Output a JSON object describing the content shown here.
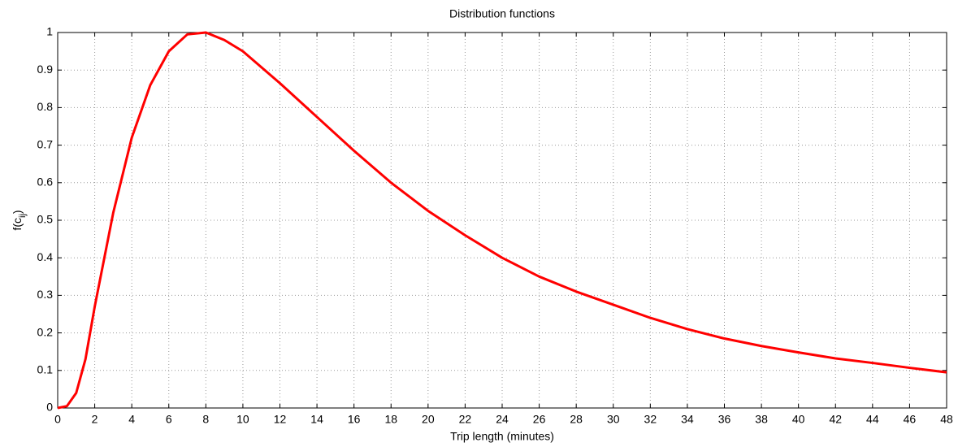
{
  "chart_data": {
    "type": "line",
    "title": "Distribution functions",
    "x_label": "Trip length (minutes)",
    "y_label_parts": [
      "f(c",
      "ij",
      ")"
    ],
    "x": [
      0,
      0.5,
      1,
      1.5,
      2,
      3,
      4,
      5,
      6,
      7,
      8,
      9,
      10,
      12,
      14,
      16,
      18,
      20,
      22,
      24,
      26,
      28,
      30,
      32,
      34,
      36,
      38,
      40,
      42,
      44,
      46,
      48
    ],
    "series": [
      {
        "name": "f(cij)",
        "color": "#ff0000",
        "values": [
          0,
          0.005,
          0.04,
          0.13,
          0.27,
          0.52,
          0.72,
          0.86,
          0.95,
          0.995,
          1.0,
          0.98,
          0.95,
          0.865,
          0.775,
          0.685,
          0.6,
          0.525,
          0.46,
          0.4,
          0.35,
          0.31,
          0.275,
          0.24,
          0.21,
          0.185,
          0.165,
          0.148,
          0.132,
          0.12,
          0.107,
          0.095
        ]
      }
    ],
    "xlim": [
      0,
      48
    ],
    "xticks": [
      0,
      2,
      4,
      6,
      8,
      10,
      12,
      14,
      16,
      18,
      20,
      22,
      24,
      26,
      28,
      30,
      32,
      34,
      36,
      38,
      40,
      42,
      44,
      46,
      48
    ],
    "ylim": [
      0,
      1
    ],
    "yticks": [
      0,
      0.1,
      0.2,
      0.3,
      0.4,
      0.5,
      0.6,
      0.7,
      0.8,
      0.9,
      1
    ],
    "grid": true
  }
}
